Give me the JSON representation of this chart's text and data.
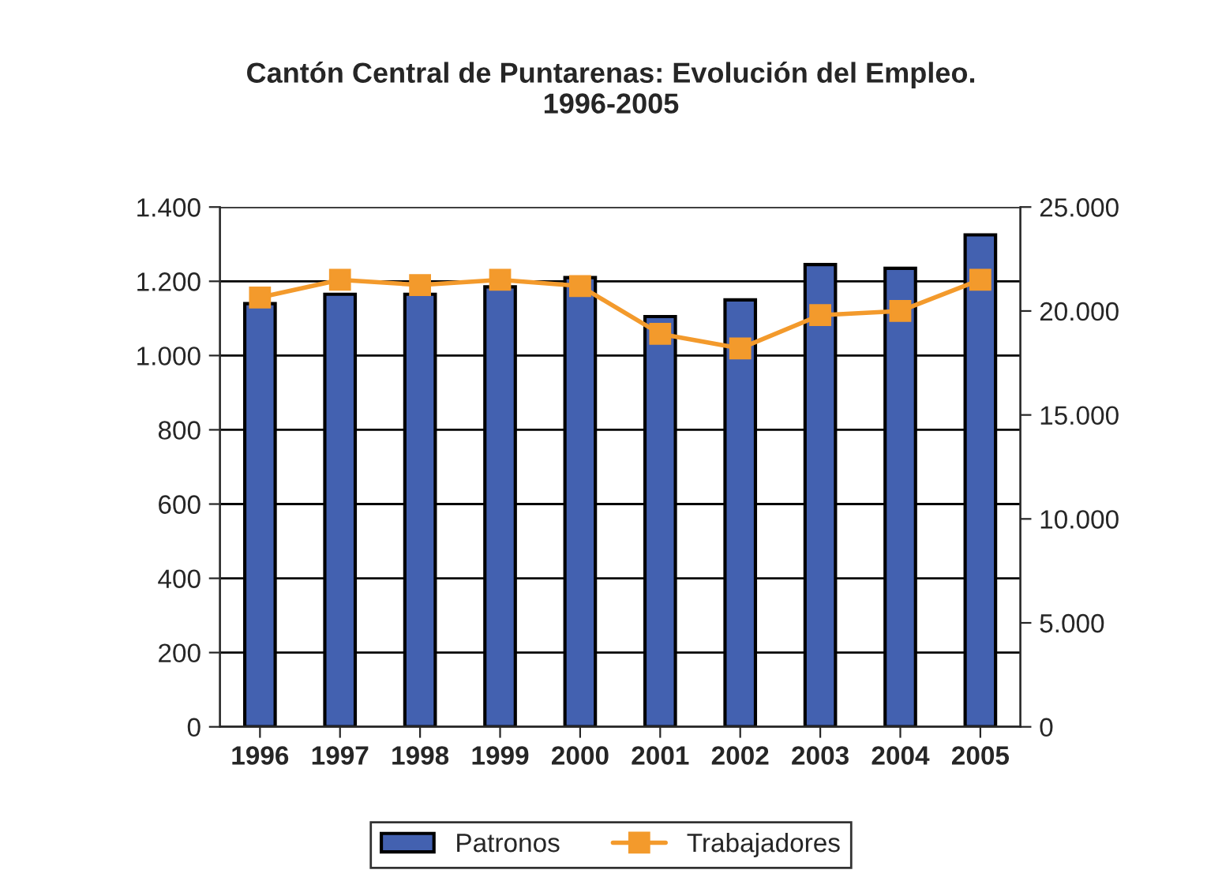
{
  "chart_data": {
    "type": "bar",
    "title": "Cantón Central de Puntarenas: Evolución del Empleo.\n1996-2005",
    "categories": [
      "1996",
      "1997",
      "1998",
      "1999",
      "2000",
      "2001",
      "2002",
      "2003",
      "2004",
      "2005"
    ],
    "series": [
      {
        "name": "Patronos",
        "color": "#4361b0",
        "values": [
          1140,
          1165,
          1165,
          1185,
          1210,
          1105,
          1150,
          1245,
          1235,
          1325
        ]
      },
      {
        "name": "Trabajadores",
        "type": "line",
        "axis": "y2",
        "color": "#f39a2c",
        "marker": "square",
        "values": [
          20650,
          21500,
          21250,
          21500,
          21200,
          18900,
          18200,
          19800,
          20000,
          21500
        ]
      }
    ],
    "ylim": [
      0,
      1400
    ],
    "yticks": [
      {
        "value": 0,
        "label": "0"
      },
      {
        "value": 200,
        "label": "200"
      },
      {
        "value": 400,
        "label": "400"
      },
      {
        "value": 600,
        "label": "600"
      },
      {
        "value": 800,
        "label": "800"
      },
      {
        "value": 1000,
        "label": "1.000"
      },
      {
        "value": 1200,
        "label": "1.200"
      },
      {
        "value": 1400,
        "label": "1.400"
      }
    ],
    "y2lim": [
      0,
      25000
    ],
    "y2ticks": [
      {
        "value": 0,
        "label": "0"
      },
      {
        "value": 5000,
        "label": "5.000"
      },
      {
        "value": 10000,
        "label": "10.000"
      },
      {
        "value": 15000,
        "label": "15.000"
      },
      {
        "value": 20000,
        "label": "20.000"
      },
      {
        "value": 25000,
        "label": "25.000"
      }
    ],
    "grid": "y",
    "legend": "bottom"
  }
}
